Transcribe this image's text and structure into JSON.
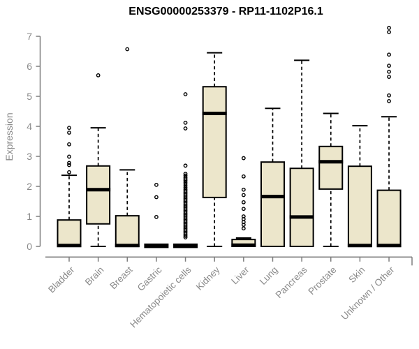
{
  "title": "ENSG00000253379 - RP11-1102P16.1",
  "y_axis": {
    "label": "Expression",
    "ticks": [
      0,
      1,
      2,
      3,
      4,
      5,
      6,
      7
    ],
    "range": [
      0,
      7
    ]
  },
  "colors": {
    "background": "#ffffff",
    "box_fill": "#ece6cb",
    "box_border": "#000000",
    "median": "#000000",
    "whisker": "#000000",
    "outlier": "#000000",
    "axis": "#7e7e7e",
    "tick_label": "#8a8a8a",
    "title": "#000000"
  },
  "chart_data": {
    "type": "boxplot",
    "title": "ENSG00000253379 - RP11-1102P16.1",
    "xlabel": "",
    "ylabel": "Expression",
    "ylim": [
      0,
      7
    ],
    "yticks": [
      0,
      1,
      2,
      3,
      4,
      5,
      6,
      7
    ],
    "grid": false,
    "legend": null,
    "categories": [
      "Bladder",
      "Brain",
      "Breast",
      "Gastric",
      "Hematopoietic cells",
      "Kidney",
      "Liver",
      "Lung",
      "Pancreas",
      "Prostate",
      "Skin",
      "Unknown / Other"
    ],
    "boxes": [
      {
        "category": "Bladder",
        "whisker_low": 0,
        "q1": 0,
        "median": 0.03,
        "q3": 0.88,
        "whisker_high": 2.37,
        "outliers": [
          2.47,
          2.71,
          2.78,
          2.99,
          3.4,
          3.79,
          3.95
        ]
      },
      {
        "category": "Brain",
        "whisker_low": 0,
        "q1": 0.75,
        "median": 1.89,
        "q3": 2.68,
        "whisker_high": 3.95,
        "outliers": [
          5.7
        ]
      },
      {
        "category": "Breast",
        "whisker_low": 0,
        "q1": 0,
        "median": 0.03,
        "q3": 1.02,
        "whisker_high": 2.55,
        "outliers": [
          6.57
        ]
      },
      {
        "category": "Gastric",
        "whisker_low": 0,
        "q1": 0,
        "median": 0.02,
        "q3": 0,
        "whisker_high": 0,
        "outliers": [
          0.98,
          1.64,
          2.05
        ]
      },
      {
        "category": "Hematopoietic cells",
        "whisker_low": 0,
        "q1": 0,
        "median": 0.02,
        "q3": 0,
        "whisker_high": 0,
        "outliers": [
          5.07,
          4.12,
          3.93,
          2.69,
          2.42,
          2.36,
          2.3,
          2.25,
          2.2,
          2.14,
          2.08,
          2.02,
          1.96,
          1.9,
          1.85,
          1.8,
          1.75,
          1.7,
          1.65,
          1.6,
          1.55,
          1.5,
          1.45,
          1.4,
          1.35,
          1.3,
          1.25,
          1.2,
          1.15,
          1.1,
          1.05,
          1.0,
          0.95,
          0.9,
          0.85,
          0.8,
          0.75,
          0.7,
          0.65,
          0.6,
          0.55,
          0.5,
          0.45,
          0.4,
          0.35,
          0.3
        ]
      },
      {
        "category": "Kidney",
        "whisker_low": 0,
        "q1": 1.63,
        "median": 4.43,
        "q3": 5.32,
        "whisker_high": 6.45,
        "outliers": []
      },
      {
        "category": "Liver",
        "whisker_low": 0,
        "q1": 0,
        "median": 0.04,
        "q3": 0.23,
        "whisker_high": 0.28,
        "outliers": [
          0.6,
          0.72,
          0.81,
          0.91,
          1.0,
          1.25,
          1.47,
          1.71,
          1.89,
          2.33,
          2.94
        ]
      },
      {
        "category": "Lung",
        "whisker_low": 0,
        "q1": 0,
        "median": 1.66,
        "q3": 2.81,
        "whisker_high": 4.6,
        "outliers": []
      },
      {
        "category": "Pancreas",
        "whisker_low": 0,
        "q1": 0,
        "median": 0.98,
        "q3": 2.6,
        "whisker_high": 6.2,
        "outliers": []
      },
      {
        "category": "Prostate",
        "whisker_low": 0,
        "q1": 1.91,
        "median": 2.82,
        "q3": 3.33,
        "whisker_high": 4.43,
        "outliers": []
      },
      {
        "category": "Skin",
        "whisker_low": 0,
        "q1": 0,
        "median": 0.03,
        "q3": 2.67,
        "whisker_high": 4.02,
        "outliers": []
      },
      {
        "category": "Unknown / Other",
        "whisker_low": 0,
        "q1": 0,
        "median": 0.03,
        "q3": 1.87,
        "whisker_high": 4.32,
        "outliers": [
          4.84,
          5.03,
          5.65,
          5.82,
          6.02,
          6.39,
          7.14,
          7.28
        ]
      }
    ]
  }
}
